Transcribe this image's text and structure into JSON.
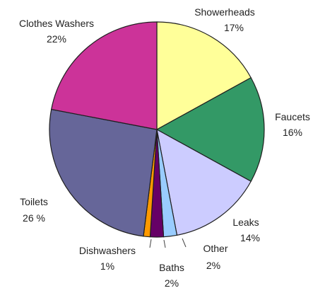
{
  "chart_data": {
    "type": "pie",
    "title": "",
    "start": "top",
    "direction": "clockwise",
    "slices": [
      {
        "label": "Showerheads",
        "value": 17,
        "display": "17%",
        "color": "#ffff99"
      },
      {
        "label": "Faucets",
        "value": 16,
        "display": "16%",
        "color": "#339966"
      },
      {
        "label": "Leaks",
        "value": 14,
        "display": "14%",
        "color": "#ccccff"
      },
      {
        "label": "Other",
        "value": 2,
        "display": "2%",
        "color": "#99ccff"
      },
      {
        "label": "Baths",
        "value": 2,
        "display": "2%",
        "color": "#660066"
      },
      {
        "label": "Dishwashers",
        "value": 1,
        "display": "1%",
        "color": "#ff9900"
      },
      {
        "label": "Toilets",
        "value": 26,
        "display": "26 %",
        "color": "#666699"
      },
      {
        "label": "Clothes Washers",
        "value": 22,
        "display": "22%",
        "color": "#cc3399"
      }
    ]
  }
}
